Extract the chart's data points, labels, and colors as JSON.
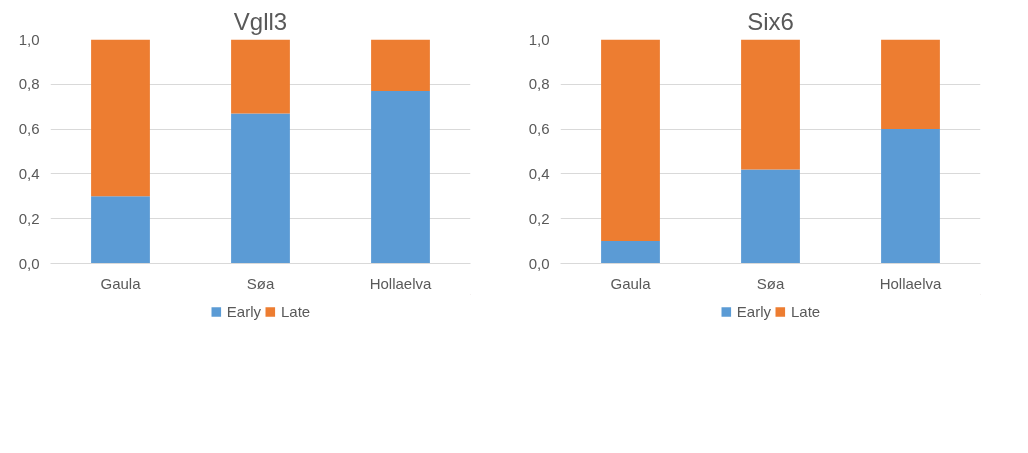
{
  "chart_data": [
    {
      "type": "bar",
      "title": "Vgll3",
      "categories": [
        "Gaula",
        "Søa",
        "Hollaelva"
      ],
      "stacked": true,
      "series": [
        {
          "name": "Early",
          "color": "#5b9bd5",
          "values": [
            0.3,
            0.67,
            0.77
          ]
        },
        {
          "name": "Late",
          "color": "#ed7d31",
          "values": [
            0.7,
            0.33,
            0.23
          ]
        }
      ],
      "ylim": [
        0,
        1
      ],
      "yticks": [
        {
          "value": 0,
          "label": "0,0"
        },
        {
          "value": 0.2,
          "label": "0,2"
        },
        {
          "value": 0.4,
          "label": "0,4"
        },
        {
          "value": 0.6,
          "label": "0,6"
        },
        {
          "value": 0.8,
          "label": "0,8"
        },
        {
          "value": 1,
          "label": "1,0"
        }
      ],
      "grid": "y",
      "legend": "bottom"
    },
    {
      "type": "bar",
      "title": "Six6",
      "categories": [
        "Gaula",
        "Søa",
        "Hollaelva"
      ],
      "stacked": true,
      "series": [
        {
          "name": "Early",
          "color": "#5b9bd5",
          "values": [
            0.1,
            0.42,
            0.6
          ]
        },
        {
          "name": "Late",
          "color": "#ed7d31",
          "values": [
            0.9,
            0.58,
            0.4
          ]
        }
      ],
      "ylim": [
        0,
        1
      ],
      "yticks": [
        {
          "value": 0,
          "label": "0,0"
        },
        {
          "value": 0.2,
          "label": "0,2"
        },
        {
          "value": 0.4,
          "label": "0,4"
        },
        {
          "value": 0.6,
          "label": "0,6"
        },
        {
          "value": 0.8,
          "label": "0,8"
        },
        {
          "value": 1,
          "label": "1,0"
        }
      ],
      "grid": "y",
      "legend": "bottom"
    }
  ]
}
